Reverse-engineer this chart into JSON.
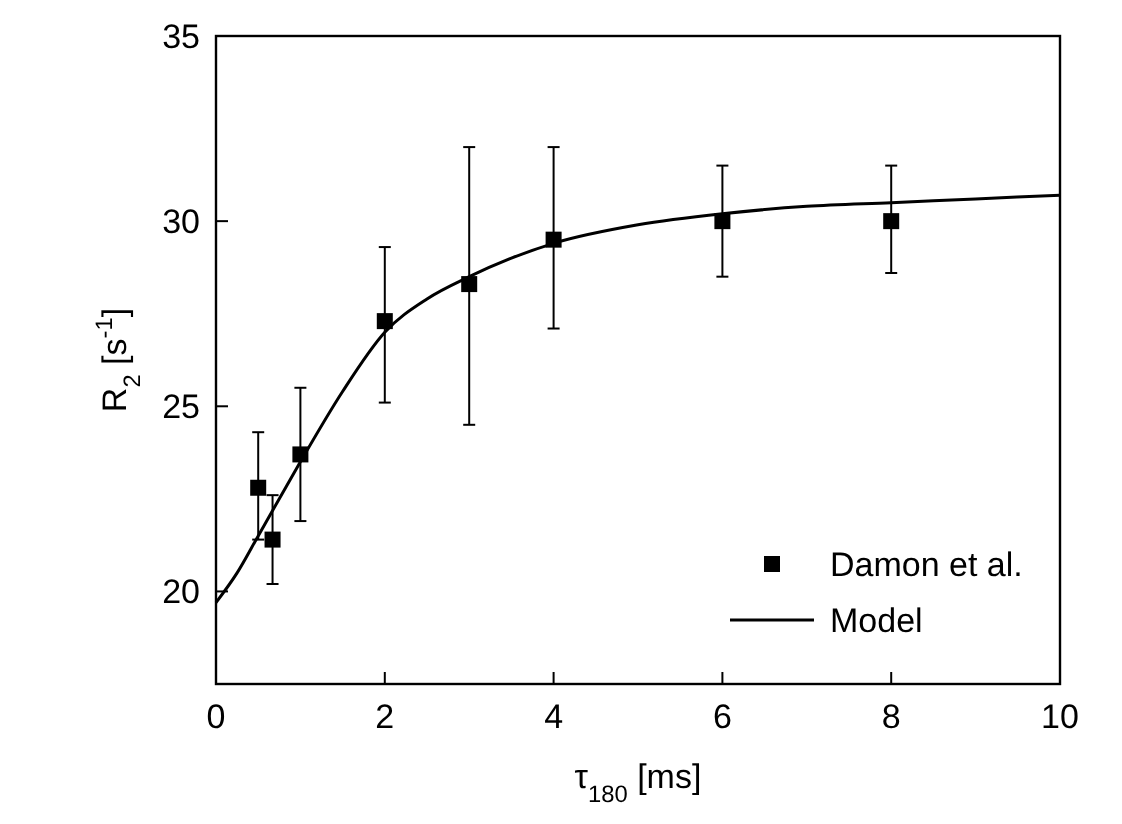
{
  "chart_data": {
    "type": "scatter",
    "xlabel": "τ$_{180}$ [ms]",
    "ylabel": "R$_{2}$ [s$^{-1}$]",
    "xlim": [
      0,
      10
    ],
    "ylim": [
      17.5,
      35
    ],
    "xticks": [
      0,
      2,
      4,
      6,
      8,
      10
    ],
    "yticks": [
      20,
      25,
      30,
      35
    ],
    "grid": false,
    "legend": "bottom right",
    "series": [
      {
        "name": "Damon et al.",
        "color": "#000000",
        "marker": "square",
        "x": [
          0.5,
          0.67,
          1,
          2,
          3,
          4,
          6,
          8
        ],
        "values": [
          22.8,
          21.4,
          23.7,
          27.3,
          28.3,
          29.5,
          30.0,
          30.0
        ],
        "errors": [
          [
            21.4,
            24.3
          ],
          [
            20.2,
            22.6
          ],
          [
            21.9,
            25.5
          ],
          [
            25.1,
            29.3
          ],
          [
            24.5,
            32.0
          ],
          [
            27.1,
            32.0
          ],
          [
            28.5,
            31.5
          ],
          [
            28.6,
            31.5
          ]
        ]
      },
      {
        "name": "Model",
        "type": "line",
        "color": "#000000",
        "line_style": "solid",
        "x": [
          0,
          0.25,
          0.5,
          0.75,
          1,
          1.5,
          2,
          2.5,
          3,
          3.5,
          4,
          5,
          6,
          7,
          8,
          9,
          10
        ],
        "values": [
          19.7,
          20.5,
          21.5,
          22.5,
          23.5,
          25.4,
          27.0,
          27.9,
          28.5,
          29.0,
          29.4,
          29.9,
          30.2,
          30.4,
          30.5,
          30.6,
          30.7
        ]
      }
    ]
  }
}
